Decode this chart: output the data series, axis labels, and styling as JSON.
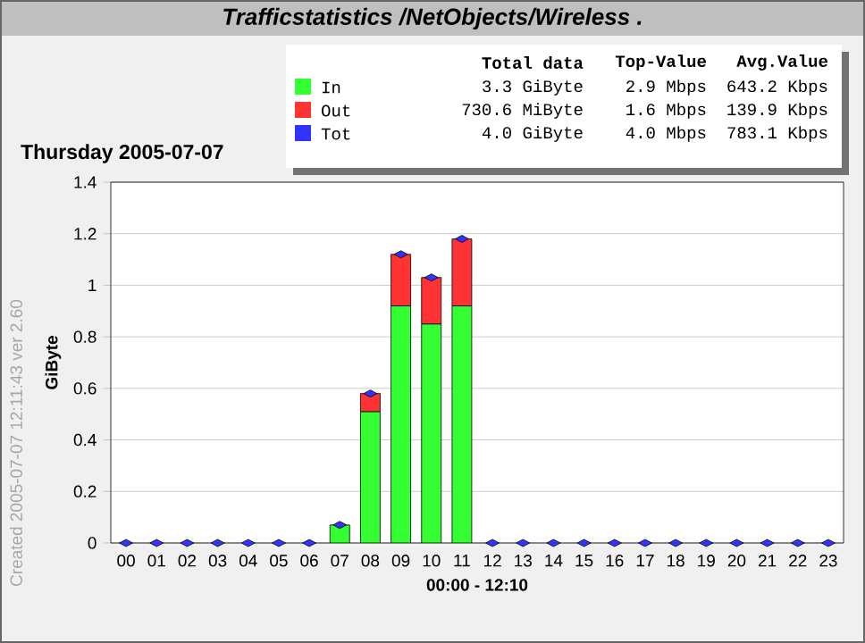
{
  "chart_data": {
    "type": "bar",
    "stacked": true,
    "title": "Trafficstatistics /NetObjects/Wireless .",
    "subtitle": "Thursday 2005-07-07",
    "xlabel": "00:00 - 12:10",
    "ylabel": "GiByte",
    "categories": [
      "00",
      "01",
      "02",
      "03",
      "04",
      "05",
      "06",
      "07",
      "08",
      "09",
      "10",
      "11",
      "12",
      "13",
      "14",
      "15",
      "16",
      "17",
      "18",
      "19",
      "20",
      "21",
      "22",
      "23"
    ],
    "series": [
      {
        "name": "In",
        "color": "#33ff33",
        "values": [
          0,
          0,
          0,
          0,
          0,
          0,
          0,
          0.07,
          0.51,
          0.92,
          0.85,
          0.92,
          0,
          0,
          0,
          0,
          0,
          0,
          0,
          0,
          0,
          0,
          0,
          0
        ]
      },
      {
        "name": "Out",
        "color": "#ff3333",
        "values": [
          0,
          0,
          0,
          0,
          0,
          0,
          0,
          0,
          0.07,
          0.2,
          0.18,
          0.26,
          0,
          0,
          0,
          0,
          0,
          0,
          0,
          0,
          0,
          0,
          0,
          0
        ]
      },
      {
        "name": "Tot",
        "color": "#3333ff",
        "type": "scatter",
        "marker": "diamond",
        "values": [
          0,
          0,
          0,
          0,
          0,
          0,
          0,
          0.07,
          0.58,
          1.12,
          1.03,
          1.18,
          0,
          0,
          0,
          0,
          0,
          0,
          0,
          0,
          0,
          0,
          0,
          0
        ]
      }
    ],
    "ylim": [
      0,
      1.4
    ],
    "yticks": [
      0,
      0.2,
      0.4,
      0.6,
      0.8,
      1,
      1.2,
      1.4
    ],
    "grid": "y",
    "legend": "top",
    "annotations": [
      "Total data",
      "Top-Value",
      "Avg.Value",
      "3.3 GiByte",
      "2.9 Mbps",
      "643.2 Kbps",
      "730.6 MiByte",
      "1.6 Mbps",
      "139.9 Kbps",
      "4.0 GiByte",
      "4.0 Mbps",
      "783.1 Kbps",
      "Created 2005-07-07 12:11:43  ver 2.60"
    ]
  }
}
